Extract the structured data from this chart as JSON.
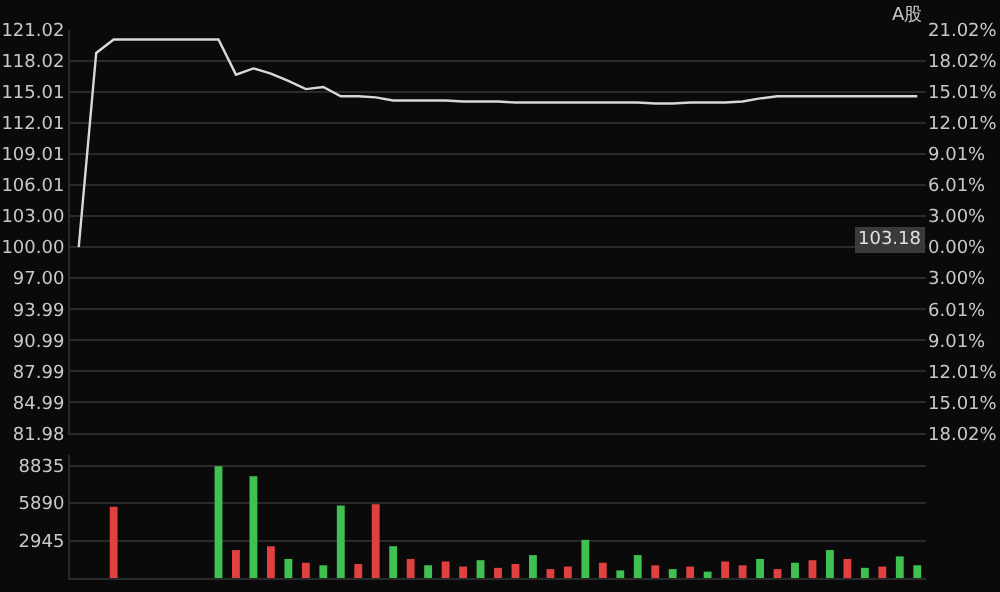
{
  "chart_data": [
    {
      "type": "line",
      "categories": [
        null,
        null,
        null,
        null,
        null,
        null,
        null,
        null,
        null,
        null,
        null,
        null,
        null,
        null,
        null,
        null,
        null,
        null,
        null,
        null,
        null,
        null,
        null,
        null,
        null,
        null,
        null,
        null,
        null,
        null,
        null,
        null,
        null,
        null,
        null,
        null,
        null,
        null,
        null,
        null,
        null,
        null,
        null,
        null,
        null,
        null,
        null,
        null,
        null
      ],
      "series": [
        {
          "color": "#d8d8d8",
          "values": [
            100.0,
            118.8,
            120.1,
            120.1,
            120.1,
            120.1,
            120.1,
            120.1,
            120.1,
            116.7,
            117.3,
            116.8,
            116.1,
            115.3,
            115.5,
            114.6,
            114.6,
            114.5,
            114.2,
            114.2,
            114.2,
            114.2,
            114.1,
            114.1,
            114.1,
            114.0,
            114.0,
            114.0,
            114.0,
            114.0,
            114.0,
            114.0,
            114.0,
            113.9,
            113.9,
            114.0,
            114.0,
            114.0,
            114.1,
            114.4,
            114.6,
            114.6,
            114.6,
            114.6,
            114.6,
            114.6,
            114.6,
            114.6,
            114.6
          ]
        }
      ],
      "ylim": [
        81.98,
        121.02
      ],
      "yticks": [
        {
          "value": 121.02,
          "label": "121.02"
        },
        {
          "value": 118.02,
          "label": "118.02"
        },
        {
          "value": 115.01,
          "label": "115.01"
        },
        {
          "value": 112.01,
          "label": "112.01"
        },
        {
          "value": 109.01,
          "label": "109.01"
        },
        {
          "value": 106.01,
          "label": "106.01"
        },
        {
          "value": 103.0,
          "label": "103.00"
        },
        {
          "value": 100.0,
          "label": "100.00"
        },
        {
          "value": 97.0,
          "label": "97.00"
        },
        {
          "value": 93.99,
          "label": "93.99"
        },
        {
          "value": 90.99,
          "label": "90.99"
        },
        {
          "value": 87.99,
          "label": "87.99"
        },
        {
          "value": 84.99,
          "label": "84.99"
        },
        {
          "value": 81.98,
          "label": "81.98"
        }
      ],
      "y2lim": [
        -18.02,
        21.02
      ],
      "y2ticks": [
        {
          "value": 21.02,
          "label": "21.02%"
        },
        {
          "value": 18.02,
          "label": "18.02%"
        },
        {
          "value": 15.01,
          "label": "15.01%"
        },
        {
          "value": 12.01,
          "label": "12.01%"
        },
        {
          "value": 9.01,
          "label": "9.01%"
        },
        {
          "value": 6.01,
          "label": "6.01%"
        },
        {
          "value": 3.0,
          "label": "3.00%"
        },
        {
          "value": 0,
          "label": "0.00%"
        },
        {
          "value": -3.0,
          "label": "3.00%"
        },
        {
          "value": -6.01,
          "label": "6.01%"
        },
        {
          "value": -9.01,
          "label": "9.01%"
        },
        {
          "value": -12.01,
          "label": "12.01%"
        },
        {
          "value": -15.01,
          "label": "15.01%"
        },
        {
          "value": -18.02,
          "label": "18.02%"
        }
      ],
      "annotations": [
        "A股",
        {
          "text": "103.18",
          "y": 100.6
        }
      ],
      "grid": "y",
      "marker": "none",
      "line_style": "solid"
    },
    {
      "type": "bar",
      "categories": [
        null,
        null,
        null,
        null,
        null,
        null,
        null,
        null,
        null,
        null,
        null,
        null,
        null,
        null,
        null,
        null,
        null,
        null,
        null,
        null,
        null,
        null,
        null,
        null,
        null,
        null,
        null,
        null,
        null,
        null,
        null,
        null,
        null,
        null,
        null,
        null,
        null,
        null,
        null,
        null,
        null,
        null,
        null,
        null,
        null,
        null,
        null,
        null,
        null
      ],
      "series": [
        {
          "colors": [
            "#e04040",
            "#e04040",
            "#e04040",
            "#e04040",
            "#e04040",
            "#e04040",
            "#e04040",
            "#e04040",
            "#40c050",
            "#e04040",
            "#40c050",
            "#e04040",
            "#40c050",
            "#e04040",
            "#40c050",
            "#40c050",
            "#e04040",
            "#e04040",
            "#40c050",
            "#e04040",
            "#40c050",
            "#e04040",
            "#e04040",
            "#40c050",
            "#e04040",
            "#e04040",
            "#40c050",
            "#e04040",
            "#e04040",
            "#40c050",
            "#e04040",
            "#40c050",
            "#40c050",
            "#e04040",
            "#40c050",
            "#e04040",
            "#40c050",
            "#e04040",
            "#e04040",
            "#40c050",
            "#e04040",
            "#40c050",
            "#e04040",
            "#40c050",
            "#e04040",
            "#40c050",
            "#e04040",
            "#40c050",
            "#40c050"
          ],
          "values": [
            null,
            null,
            5600,
            null,
            null,
            null,
            null,
            null,
            8800,
            2200,
            8000,
            2500,
            1500,
            1200,
            1000,
            5700,
            1100,
            5800,
            2500,
            1500,
            1000,
            1300,
            900,
            1400,
            800,
            1100,
            1800,
            700,
            900,
            3000,
            1200,
            600,
            1800,
            1000,
            700,
            900,
            500,
            1300,
            1000,
            1500,
            700,
            1200,
            1400,
            2200,
            1500,
            800,
            900,
            1700,
            1000
          ]
        }
      ],
      "ylim": [
        0,
        9700
      ],
      "yticks": [
        2945,
        5890,
        8835
      ],
      "grid": "y"
    }
  ]
}
